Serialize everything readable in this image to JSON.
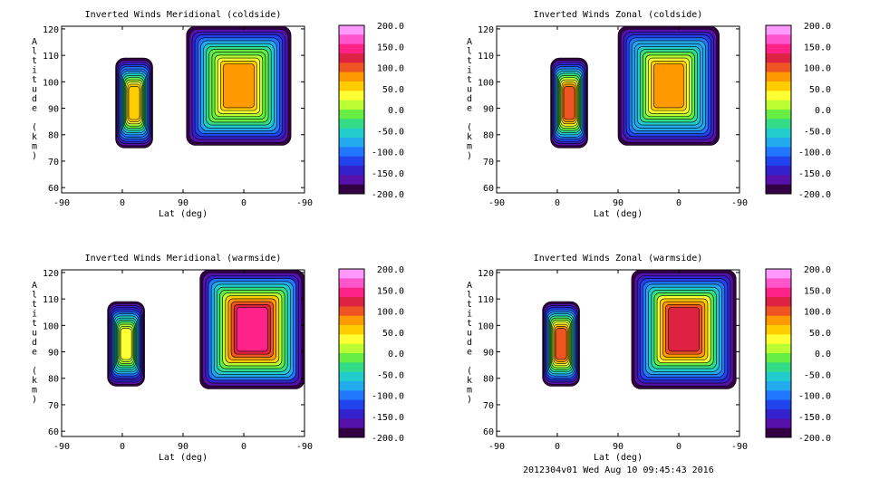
{
  "footer_text": "2012304v01 Wed Aug 10 09:45:43 2016",
  "colorbar": {
    "tick_labels": [
      "200.0",
      "150.0",
      "100.0",
      "50.0",
      "0.0",
      "-50.0",
      "-100.0",
      "-150.0",
      "-200.0"
    ],
    "colors": [
      "#ff99ff",
      "#ff55cc",
      "#ff2288",
      "#dd2244",
      "#ee5522",
      "#ff9900",
      "#ffcc00",
      "#ffff33",
      "#bbff33",
      "#66ee44",
      "#33dd88",
      "#22cccc",
      "#22aaee",
      "#2277ff",
      "#2244ee",
      "#3322cc",
      "#5511aa",
      "#330044"
    ]
  },
  "chart_data": [
    {
      "type": "heatmap",
      "title": "Inverted Winds Meridional (coldside)",
      "xlabel": "Lat (deg)",
      "ylabel": "Altitude (km)",
      "x_tick_labels": [
        "-90",
        "0",
        "90",
        "0",
        "-90"
      ],
      "y_ticks": [
        60,
        70,
        80,
        90,
        100,
        110,
        120
      ],
      "ylim": [
        58,
        121
      ],
      "xlim": [
        -90,
        270
      ],
      "blobs": [
        {
          "lat0": -10,
          "lat1": 45,
          "alt0": 75,
          "alt1": 109,
          "level": 0.58
        },
        {
          "lat0": 95,
          "lat1": 250,
          "alt0": 76,
          "alt1": 121,
          "level": 0.62
        }
      ]
    },
    {
      "type": "heatmap",
      "title": "Inverted Winds Zonal (coldside)",
      "xlabel": "Lat (deg)",
      "ylabel": "Altitude (km)",
      "x_tick_labels": [
        "-90",
        "0",
        "90",
        "0",
        "-90"
      ],
      "y_ticks": [
        60,
        70,
        80,
        90,
        100,
        110,
        120
      ],
      "ylim": [
        58,
        121
      ],
      "xlim": [
        -90,
        270
      ],
      "blobs": [
        {
          "lat0": -10,
          "lat1": 45,
          "alt0": 75,
          "alt1": 109,
          "level": 0.66
        },
        {
          "lat0": 90,
          "lat1": 240,
          "alt0": 76,
          "alt1": 121,
          "level": 0.6
        }
      ]
    },
    {
      "type": "heatmap",
      "title": "Inverted Winds Meridional (warmside)",
      "xlabel": "Lat (deg)",
      "ylabel": "Altitude (km)",
      "x_tick_labels": [
        "-90",
        "0",
        "90",
        "0",
        "-90"
      ],
      "y_ticks": [
        60,
        70,
        80,
        90,
        100,
        110,
        120
      ],
      "ylim": [
        58,
        121
      ],
      "xlim": [
        -90,
        270
      ],
      "blobs": [
        {
          "lat0": -22,
          "lat1": 33,
          "alt0": 77,
          "alt1": 109,
          "level": 0.52
        },
        {
          "lat0": 115,
          "lat1": 270,
          "alt0": 76,
          "alt1": 121,
          "level": 0.78
        }
      ]
    },
    {
      "type": "heatmap",
      "title": "Inverted Winds Zonal (warmside)",
      "xlabel": "Lat (deg)",
      "ylabel": "Altitude (km)",
      "x_tick_labels": [
        "-90",
        "0",
        "90",
        "0",
        "-90"
      ],
      "y_ticks": [
        60,
        70,
        80,
        90,
        100,
        110,
        120
      ],
      "ylim": [
        58,
        121
      ],
      "xlim": [
        -90,
        270
      ],
      "blobs": [
        {
          "lat0": -22,
          "lat1": 33,
          "alt0": 77,
          "alt1": 109,
          "level": 0.64
        },
        {
          "lat0": 110,
          "lat1": 265,
          "alt0": 76,
          "alt1": 121,
          "level": 0.7
        }
      ]
    }
  ]
}
